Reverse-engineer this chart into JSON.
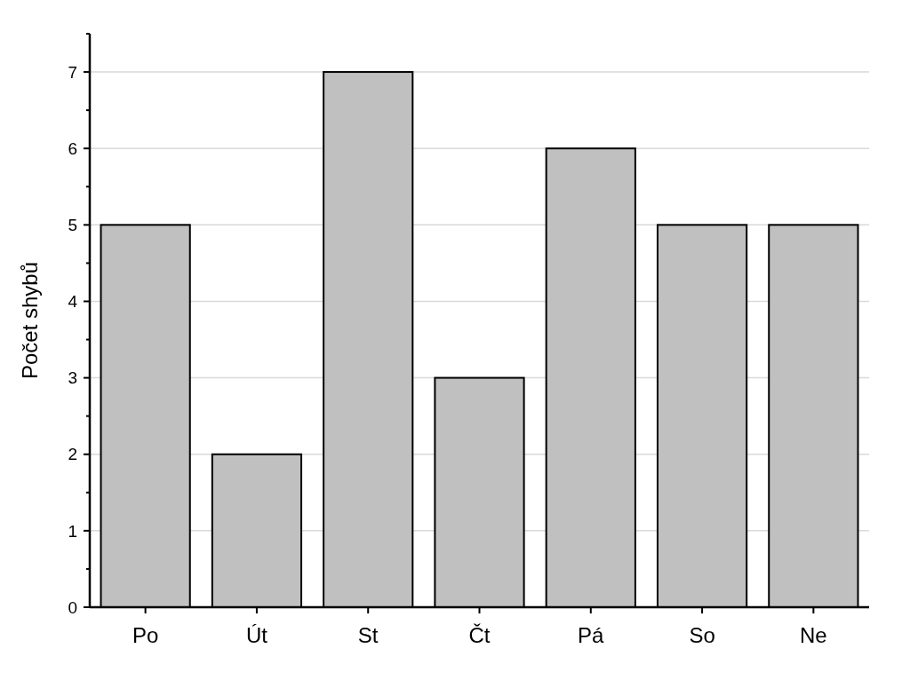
{
  "chart_data": {
    "type": "bar",
    "ylabel": "Počet shybů",
    "categories": [
      "Po",
      "Út",
      "St",
      "Čt",
      "Pá",
      "So",
      "Ne"
    ],
    "values": [
      5,
      2,
      7,
      3,
      6,
      5,
      5
    ],
    "color": "#c0c0c0",
    "ylim": [
      0,
      7.5
    ],
    "yticks": [
      0,
      {
        "value": 0.5,
        "label": null
      },
      1,
      {
        "value": 1.5,
        "label": null
      },
      2,
      {
        "value": 2.5,
        "label": null
      },
      3,
      {
        "value": 3.5,
        "label": null
      },
      4,
      {
        "value": 4.5,
        "label": null
      },
      5,
      {
        "value": 5.5,
        "label": null
      },
      6,
      {
        "value": 6.5,
        "label": null
      },
      7,
      {
        "value": 7.5,
        "label": null
      }
    ],
    "grid": "y"
  }
}
